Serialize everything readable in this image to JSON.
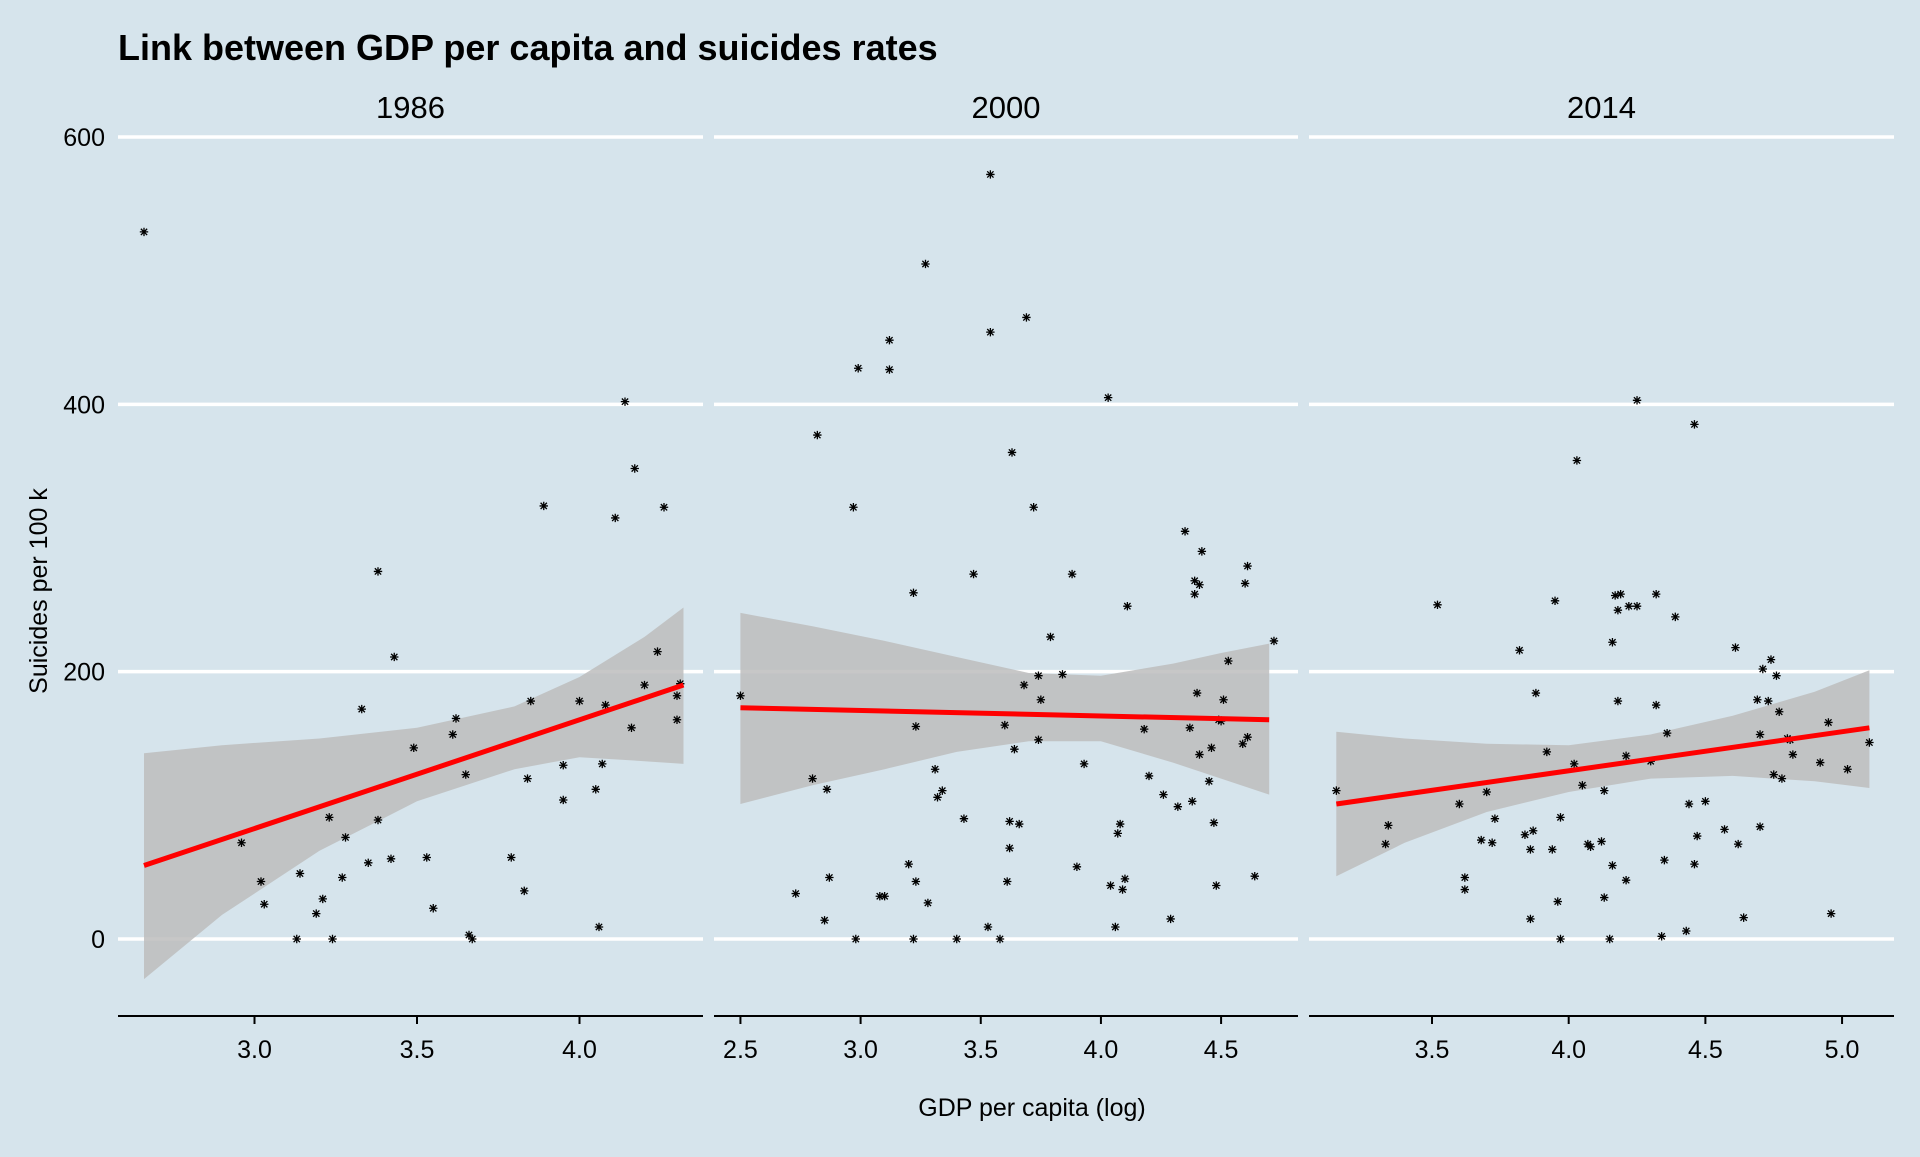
{
  "colors": {
    "background": "#d6e4ec",
    "gridline": "#ffffff",
    "point": "#000000",
    "fit_line": "#ff0000",
    "confidence_band": "#bdbdbd"
  },
  "chart_data": {
    "type": "scatter",
    "title": "Link between GDP per capita and suicides rates",
    "xlabel": "GDP per capita (log)",
    "ylabel": "Suicides per 100 k",
    "ylim": [
      -60,
      620
    ],
    "yticks": [
      0,
      200,
      400,
      600
    ],
    "grid": "horizontal major lines only",
    "legend": "none",
    "point_marker": "asterisk",
    "facets": [
      {
        "label": "1986",
        "xlim": [
          2.58,
          4.38
        ],
        "xticks": [
          3.0,
          3.5,
          4.0
        ],
        "xtick_labels": [
          "3.0",
          "3.5",
          "4.0"
        ],
        "fit": {
          "x": [
            2.66,
            4.32
          ],
          "y": [
            55,
            190
          ]
        },
        "band": {
          "x": [
            2.66,
            2.9,
            3.2,
            3.5,
            3.8,
            4.0,
            4.2,
            4.32
          ],
          "upper": [
            139,
            145,
            150,
            158,
            174,
            196,
            226,
            248
          ],
          "lower": [
            -30,
            18,
            66,
            103,
            127,
            136,
            133,
            131
          ]
        },
        "points": [
          [
            2.66,
            529
          ],
          [
            2.96,
            72
          ],
          [
            3.02,
            43
          ],
          [
            3.03,
            26
          ],
          [
            3.13,
            0
          ],
          [
            3.14,
            49
          ],
          [
            3.19,
            19
          ],
          [
            3.21,
            30
          ],
          [
            3.23,
            91
          ],
          [
            3.24,
            0
          ],
          [
            3.27,
            46
          ],
          [
            3.28,
            76
          ],
          [
            3.33,
            172
          ],
          [
            3.35,
            57
          ],
          [
            3.38,
            89
          ],
          [
            3.38,
            275
          ],
          [
            3.42,
            60
          ],
          [
            3.43,
            211
          ],
          [
            3.49,
            143
          ],
          [
            3.53,
            61
          ],
          [
            3.55,
            23
          ],
          [
            3.61,
            153
          ],
          [
            3.62,
            165
          ],
          [
            3.65,
            123
          ],
          [
            3.66,
            3
          ],
          [
            3.67,
            0
          ],
          [
            3.79,
            61
          ],
          [
            3.83,
            36
          ],
          [
            3.84,
            120
          ],
          [
            3.85,
            178
          ],
          [
            3.89,
            324
          ],
          [
            3.95,
            104
          ],
          [
            3.95,
            130
          ],
          [
            4.0,
            178
          ],
          [
            4.05,
            112
          ],
          [
            4.06,
            9
          ],
          [
            4.07,
            131
          ],
          [
            4.08,
            175
          ],
          [
            4.11,
            315
          ],
          [
            4.14,
            402
          ],
          [
            4.16,
            158
          ],
          [
            4.17,
            352
          ],
          [
            4.2,
            190
          ],
          [
            4.24,
            215
          ],
          [
            4.26,
            323
          ],
          [
            4.3,
            164
          ],
          [
            4.3,
            182
          ],
          [
            4.31,
            191
          ]
        ]
      },
      {
        "label": "2000",
        "xlim": [
          2.39,
          4.82
        ],
        "xticks": [
          2.5,
          3.0,
          3.5,
          4.0,
          4.5
        ],
        "xtick_labels": [
          "2.5",
          "3.0",
          "3.5",
          "4.0",
          "4.5"
        ],
        "fit": {
          "x": [
            2.5,
            4.7
          ],
          "y": [
            173,
            164
          ]
        },
        "band": {
          "x": [
            2.5,
            2.8,
            3.1,
            3.4,
            3.7,
            4.0,
            4.3,
            4.5,
            4.7
          ],
          "upper": [
            244,
            234,
            223,
            211,
            199,
            197,
            206,
            214,
            221
          ],
          "lower": [
            101,
            115,
            127,
            140,
            148,
            148,
            132,
            120,
            108
          ]
        },
        "points": [
          [
            2.5,
            182
          ],
          [
            2.73,
            34
          ],
          [
            2.8,
            120
          ],
          [
            2.82,
            377
          ],
          [
            2.85,
            14
          ],
          [
            2.86,
            112
          ],
          [
            2.87,
            46
          ],
          [
            2.97,
            323
          ],
          [
            2.98,
            0
          ],
          [
            2.99,
            427
          ],
          [
            3.08,
            32
          ],
          [
            3.1,
            32
          ],
          [
            3.12,
            448
          ],
          [
            3.12,
            426
          ],
          [
            3.2,
            56
          ],
          [
            3.22,
            0
          ],
          [
            3.22,
            259
          ],
          [
            3.23,
            159
          ],
          [
            3.23,
            43
          ],
          [
            3.27,
            505
          ],
          [
            3.28,
            27
          ],
          [
            3.31,
            127
          ],
          [
            3.32,
            106
          ],
          [
            3.34,
            111
          ],
          [
            3.4,
            0
          ],
          [
            3.43,
            90
          ],
          [
            3.47,
            273
          ],
          [
            3.53,
            9
          ],
          [
            3.54,
            454
          ],
          [
            3.54,
            572
          ],
          [
            3.58,
            0
          ],
          [
            3.6,
            160
          ],
          [
            3.61,
            43
          ],
          [
            3.62,
            68
          ],
          [
            3.62,
            88
          ],
          [
            3.63,
            364
          ],
          [
            3.64,
            142
          ],
          [
            3.66,
            86
          ],
          [
            3.68,
            190
          ],
          [
            3.69,
            465
          ],
          [
            3.72,
            323
          ],
          [
            3.74,
            197
          ],
          [
            3.74,
            149
          ],
          [
            3.75,
            179
          ],
          [
            3.79,
            226
          ],
          [
            3.84,
            198
          ],
          [
            3.88,
            273
          ],
          [
            3.9,
            54
          ],
          [
            3.93,
            131
          ],
          [
            4.03,
            405
          ],
          [
            4.04,
            40
          ],
          [
            4.06,
            9
          ],
          [
            4.07,
            79
          ],
          [
            4.08,
            86
          ],
          [
            4.09,
            37
          ],
          [
            4.1,
            45
          ],
          [
            4.11,
            249
          ],
          [
            4.18,
            157
          ],
          [
            4.2,
            122
          ],
          [
            4.26,
            108
          ],
          [
            4.29,
            15
          ],
          [
            4.32,
            99
          ],
          [
            4.35,
            305
          ],
          [
            4.37,
            158
          ],
          [
            4.38,
            103
          ],
          [
            4.39,
            258
          ],
          [
            4.39,
            268
          ],
          [
            4.4,
            184
          ],
          [
            4.41,
            265
          ],
          [
            4.41,
            138
          ],
          [
            4.42,
            290
          ],
          [
            4.45,
            118
          ],
          [
            4.46,
            143
          ],
          [
            4.47,
            87
          ],
          [
            4.48,
            40
          ],
          [
            4.49,
            164
          ],
          [
            4.5,
            163
          ],
          [
            4.51,
            179
          ],
          [
            4.53,
            208
          ],
          [
            4.59,
            146
          ],
          [
            4.6,
            266
          ],
          [
            4.61,
            279
          ],
          [
            4.61,
            151
          ],
          [
            4.64,
            47
          ],
          [
            4.72,
            223
          ]
        ]
      },
      {
        "label": "2014",
        "xlim": [
          3.05,
          5.19
        ],
        "xticks": [
          3.5,
          4.0,
          4.5,
          5.0
        ],
        "xtick_labels": [
          "3.5",
          "4.0",
          "4.5",
          "5.0"
        ],
        "fit": {
          "x": [
            3.15,
            5.1
          ],
          "y": [
            101,
            158
          ]
        },
        "band": {
          "x": [
            3.15,
            3.4,
            3.7,
            4.0,
            4.3,
            4.6,
            4.9,
            5.1
          ],
          "upper": [
            155,
            150,
            146,
            145,
            153,
            167,
            185,
            201
          ],
          "lower": [
            47,
            72,
            95,
            110,
            120,
            122,
            118,
            113
          ]
        },
        "points": [
          [
            3.15,
            111
          ],
          [
            3.33,
            71
          ],
          [
            3.34,
            85
          ],
          [
            3.52,
            250
          ],
          [
            3.6,
            101
          ],
          [
            3.62,
            37
          ],
          [
            3.62,
            46
          ],
          [
            3.68,
            74
          ],
          [
            3.7,
            110
          ],
          [
            3.72,
            72
          ],
          [
            3.73,
            90
          ],
          [
            3.82,
            216
          ],
          [
            3.84,
            78
          ],
          [
            3.86,
            67
          ],
          [
            3.86,
            15
          ],
          [
            3.87,
            81
          ],
          [
            3.88,
            184
          ],
          [
            3.92,
            140
          ],
          [
            3.94,
            67
          ],
          [
            3.95,
            253
          ],
          [
            3.96,
            28
          ],
          [
            3.97,
            0
          ],
          [
            3.97,
            91
          ],
          [
            4.02,
            131
          ],
          [
            4.03,
            358
          ],
          [
            4.05,
            115
          ],
          [
            4.07,
            71
          ],
          [
            4.08,
            69
          ],
          [
            4.12,
            73
          ],
          [
            4.13,
            31
          ],
          [
            4.13,
            111
          ],
          [
            4.15,
            0
          ],
          [
            4.16,
            222
          ],
          [
            4.16,
            55
          ],
          [
            4.17,
            257
          ],
          [
            4.18,
            246
          ],
          [
            4.18,
            178
          ],
          [
            4.19,
            258
          ],
          [
            4.21,
            44
          ],
          [
            4.21,
            137
          ],
          [
            4.22,
            249
          ],
          [
            4.25,
            249
          ],
          [
            4.25,
            403
          ],
          [
            4.3,
            133
          ],
          [
            4.32,
            258
          ],
          [
            4.32,
            175
          ],
          [
            4.34,
            2
          ],
          [
            4.35,
            59
          ],
          [
            4.36,
            154
          ],
          [
            4.39,
            241
          ],
          [
            4.43,
            6
          ],
          [
            4.44,
            101
          ],
          [
            4.46,
            385
          ],
          [
            4.46,
            56
          ],
          [
            4.47,
            77
          ],
          [
            4.5,
            103
          ],
          [
            4.57,
            82
          ],
          [
            4.61,
            218
          ],
          [
            4.62,
            71
          ],
          [
            4.64,
            16
          ],
          [
            4.69,
            179
          ],
          [
            4.7,
            84
          ],
          [
            4.7,
            153
          ],
          [
            4.71,
            202
          ],
          [
            4.73,
            178
          ],
          [
            4.74,
            209
          ],
          [
            4.75,
            123
          ],
          [
            4.76,
            197
          ],
          [
            4.77,
            170
          ],
          [
            4.78,
            120
          ],
          [
            4.8,
            150
          ],
          [
            4.81,
            149
          ],
          [
            4.82,
            138
          ],
          [
            4.92,
            132
          ],
          [
            4.95,
            162
          ],
          [
            4.96,
            19
          ],
          [
            5.02,
            127
          ],
          [
            5.1,
            147
          ]
        ]
      }
    ]
  }
}
